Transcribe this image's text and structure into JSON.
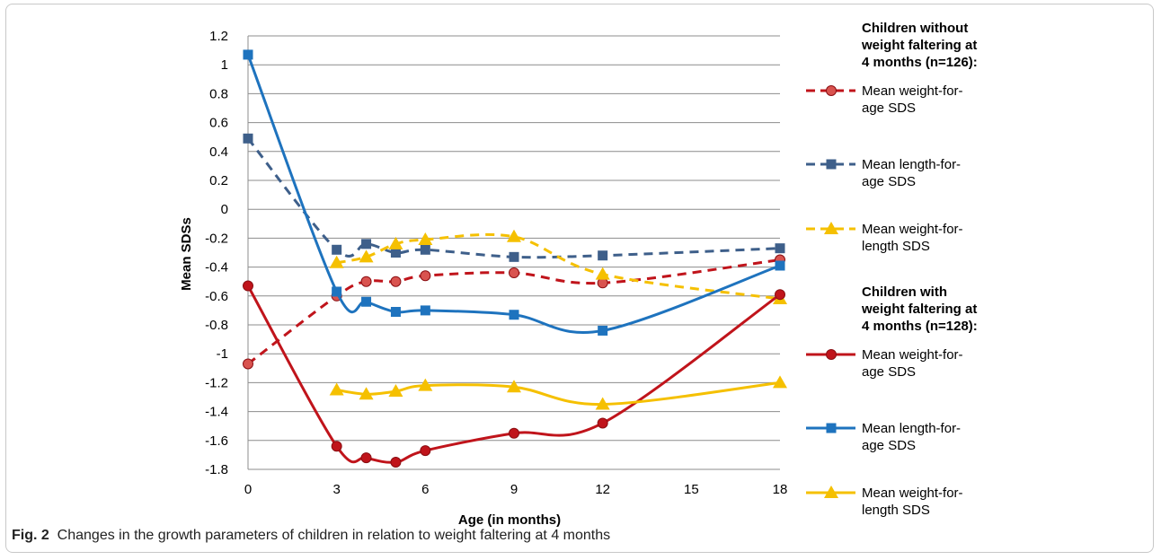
{
  "caption": {
    "label": "Fig. 2",
    "text": "Changes in the growth parameters of children in relation to weight faltering at 4 months"
  },
  "chart_data": {
    "type": "line",
    "title": "",
    "xlabel": "Age (in months)",
    "ylabel": "Mean SDSs",
    "xlim": [
      0,
      18
    ],
    "ylim": [
      -1.8,
      1.2
    ],
    "xticks": [
      0,
      3,
      6,
      9,
      12,
      15,
      18
    ],
    "yticks": [
      1.2,
      1,
      0.8,
      0.6,
      0.4,
      0.2,
      0,
      -0.2,
      -0.4,
      -0.6,
      -0.8,
      -1,
      -1.2,
      -1.4,
      -1.6,
      -1.8
    ],
    "ytick_labels": [
      "1.2",
      "1",
      "0.8",
      "0.6",
      "0.4",
      "0.2",
      "0",
      "-0.2",
      "-0.4",
      "-0.6",
      "-0.8",
      "-1",
      "-1.2",
      "-1.4",
      "-1.6",
      "-1.8"
    ],
    "grid": true,
    "legend_position": "right",
    "legend_groups": [
      {
        "heading": [
          "Children without",
          "weight faltering at",
          "4 months (n=126):"
        ]
      },
      {
        "heading": [
          "Children with",
          "weight faltering at",
          "4 months (n=128):"
        ]
      }
    ],
    "series": [
      {
        "name": "Mean weight-for-age SDS",
        "legend_lines": [
          "Mean weight-for-",
          "age SDS"
        ],
        "group": 0,
        "color": "#c0141b",
        "dashed": true,
        "marker": "circle",
        "x": [
          0,
          3,
          4,
          5,
          6,
          9,
          12,
          18
        ],
        "y": [
          -1.07,
          -0.6,
          -0.5,
          -0.5,
          -0.46,
          -0.44,
          -0.51,
          -0.35
        ]
      },
      {
        "name": "Mean length-for-age SDS",
        "legend_lines": [
          "Mean length-for-",
          "age SDS"
        ],
        "group": 0,
        "color": "#3e5f8a",
        "dashed": true,
        "marker": "square",
        "x": [
          0,
          3,
          4,
          5,
          6,
          9,
          12,
          18
        ],
        "y": [
          0.49,
          -0.28,
          -0.24,
          -0.3,
          -0.28,
          -0.33,
          -0.32,
          -0.27
        ]
      },
      {
        "name": "Mean weight-for-length SDS",
        "legend_lines": [
          "Mean weight-for-",
          "length SDS"
        ],
        "group": 0,
        "color": "#f5c000",
        "dashed": true,
        "marker": "triangle",
        "x": [
          3,
          4,
          5,
          6,
          9,
          12,
          18
        ],
        "y": [
          -0.37,
          -0.33,
          -0.24,
          -0.21,
          -0.19,
          -0.45,
          -0.62
        ]
      },
      {
        "name": "Mean weight-for-age SDS",
        "legend_lines": [
          "Mean weight-for-",
          "age SDS"
        ],
        "group": 1,
        "color": "#c0141b",
        "dashed": false,
        "marker": "circle",
        "x": [
          0,
          3,
          4,
          5,
          6,
          9,
          12,
          18
        ],
        "y": [
          -0.53,
          -1.64,
          -1.72,
          -1.75,
          -1.67,
          -1.55,
          -1.48,
          -0.59
        ]
      },
      {
        "name": "Mean length-for-age SDS",
        "legend_lines": [
          "Mean length-for-",
          "age SDS"
        ],
        "group": 1,
        "color": "#1e73be",
        "dashed": false,
        "marker": "square",
        "x": [
          0,
          3,
          4,
          5,
          6,
          9,
          12,
          18
        ],
        "y": [
          1.07,
          -0.57,
          -0.64,
          -0.71,
          -0.7,
          -0.73,
          -0.84,
          -0.39
        ]
      },
      {
        "name": "Mean weight-for-length SDS",
        "legend_lines": [
          "Mean weight-for-",
          "length SDS"
        ],
        "group": 1,
        "color": "#f5c000",
        "dashed": false,
        "marker": "triangle",
        "x": [
          3,
          4,
          5,
          6,
          9,
          12,
          18
        ],
        "y": [
          -1.25,
          -1.28,
          -1.26,
          -1.22,
          -1.23,
          -1.35,
          -1.2
        ]
      }
    ]
  }
}
